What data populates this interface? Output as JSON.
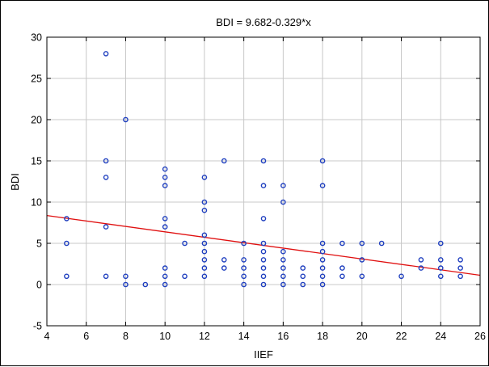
{
  "chart_data": {
    "type": "scatter",
    "title": "BDI = 9.682-0.329*x",
    "xlabel": "IIEF",
    "ylabel": "BDI",
    "xlim": [
      4,
      26
    ],
    "ylim": [
      -5,
      30
    ],
    "xticks": [
      "4",
      "6",
      "8",
      "10",
      "12",
      "14",
      "16",
      "18",
      "20",
      "22",
      "24",
      "26"
    ],
    "yticks": [
      "-5",
      "0",
      "5",
      "10",
      "15",
      "20",
      "25",
      "30"
    ],
    "grid": true,
    "point_color": "#1f3fbf",
    "line_color": "#e01010",
    "regression": {
      "intercept": 9.682,
      "slope": -0.329
    },
    "points": [
      [
        5,
        8
      ],
      [
        5,
        5
      ],
      [
        5,
        1
      ],
      [
        7,
        28
      ],
      [
        7,
        15
      ],
      [
        7,
        13
      ],
      [
        7,
        7
      ],
      [
        7,
        1
      ],
      [
        8,
        20
      ],
      [
        8,
        1
      ],
      [
        8,
        0
      ],
      [
        9,
        0
      ],
      [
        10,
        14
      ],
      [
        10,
        13
      ],
      [
        10,
        12
      ],
      [
        10,
        8
      ],
      [
        10,
        7
      ],
      [
        10,
        2
      ],
      [
        10,
        1
      ],
      [
        10,
        0
      ],
      [
        11,
        5
      ],
      [
        11,
        1
      ],
      [
        12,
        13
      ],
      [
        12,
        10
      ],
      [
        12,
        9
      ],
      [
        12,
        6
      ],
      [
        12,
        5
      ],
      [
        12,
        4
      ],
      [
        12,
        3
      ],
      [
        12,
        2
      ],
      [
        12,
        1
      ],
      [
        13,
        15
      ],
      [
        13,
        3
      ],
      [
        13,
        2
      ],
      [
        14,
        5
      ],
      [
        14,
        3
      ],
      [
        14,
        2
      ],
      [
        14,
        1
      ],
      [
        14,
        0
      ],
      [
        15,
        15
      ],
      [
        15,
        12
      ],
      [
        15,
        8
      ],
      [
        15,
        5
      ],
      [
        15,
        4
      ],
      [
        15,
        3
      ],
      [
        15,
        2
      ],
      [
        15,
        1
      ],
      [
        15,
        0
      ],
      [
        16,
        12
      ],
      [
        16,
        10
      ],
      [
        16,
        4
      ],
      [
        16,
        3
      ],
      [
        16,
        2
      ],
      [
        16,
        1
      ],
      [
        16,
        0
      ],
      [
        17,
        2
      ],
      [
        17,
        1
      ],
      [
        17,
        0
      ],
      [
        18,
        15
      ],
      [
        18,
        12
      ],
      [
        18,
        5
      ],
      [
        18,
        4
      ],
      [
        18,
        3
      ],
      [
        18,
        2
      ],
      [
        18,
        1
      ],
      [
        18,
        0
      ],
      [
        19,
        5
      ],
      [
        19,
        2
      ],
      [
        19,
        1
      ],
      [
        20,
        5
      ],
      [
        20,
        3
      ],
      [
        20,
        1
      ],
      [
        21,
        5
      ],
      [
        22,
        1
      ],
      [
        23,
        3
      ],
      [
        23,
        2
      ],
      [
        24,
        5
      ],
      [
        24,
        3
      ],
      [
        24,
        2
      ],
      [
        24,
        1
      ],
      [
        25,
        3
      ],
      [
        25,
        2
      ],
      [
        25,
        1
      ]
    ]
  }
}
